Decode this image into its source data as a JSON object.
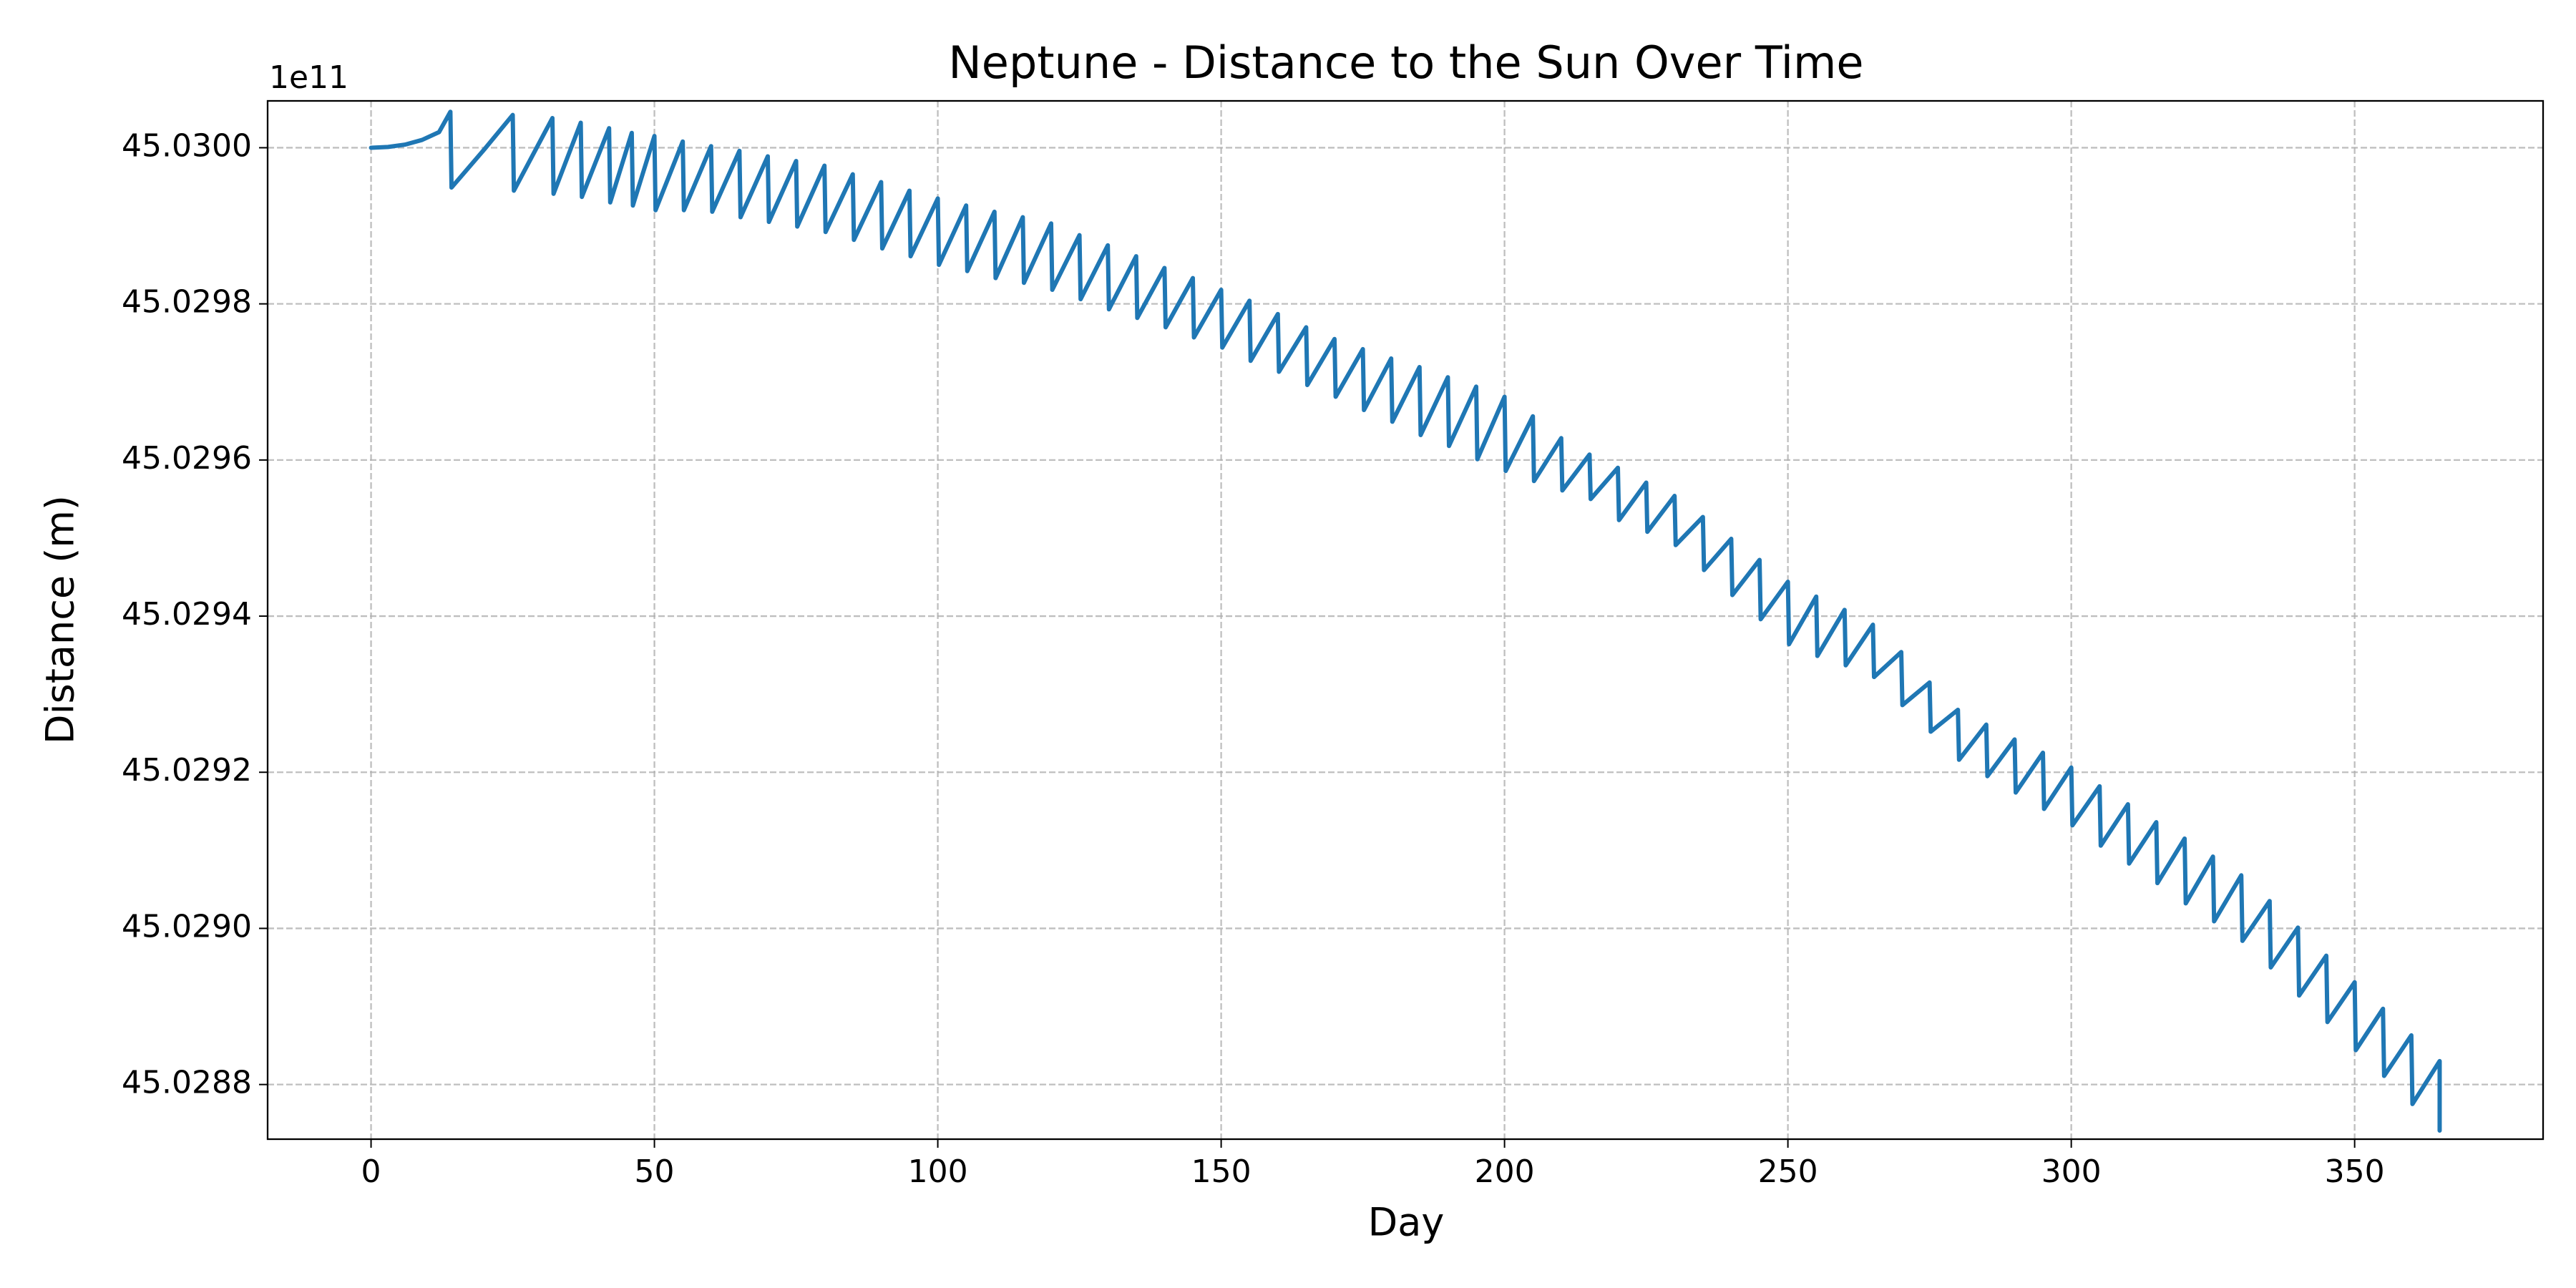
{
  "chart_data": {
    "type": "line",
    "title": "Neptune - Distance to the Sun Over Time",
    "x_label": "Day",
    "y_label": "Distance (m)",
    "offset_label": "1e11",
    "color": "#1f77b4",
    "grid": true,
    "xlim": [
      -18.25,
      383.25
    ],
    "ylim": [
      45.02873,
      45.03006
    ],
    "xticks": [
      0,
      50,
      100,
      150,
      200,
      250,
      300,
      350
    ],
    "yticks": [
      {
        "value": 45.0288,
        "label": "45.0288"
      },
      {
        "value": 45.029,
        "label": "45.0290"
      },
      {
        "value": 45.0292,
        "label": "45.0292"
      },
      {
        "value": 45.0294,
        "label": "45.0294"
      },
      {
        "value": 45.0296,
        "label": "45.0296"
      },
      {
        "value": 45.0298,
        "label": "45.0298"
      },
      {
        "value": 45.03,
        "label": "45.0300"
      }
    ],
    "x": [
      0,
      3,
      6,
      9,
      12,
      14,
      14.2,
      20,
      25,
      25.2,
      32,
      32.2,
      37,
      37.2,
      42,
      42.2,
      46,
      46.2,
      50,
      50.2,
      55,
      55.2,
      60,
      60.2,
      65,
      65.2,
      70,
      70.2,
      75,
      75.2,
      80,
      80.2,
      85,
      85.2,
      90,
      90.2,
      95,
      95.2,
      100,
      100.2,
      105,
      105.2,
      110,
      110.2,
      115,
      115.2,
      120,
      120.2,
      125,
      125.2,
      130,
      130.2,
      135,
      135.2,
      140,
      140.2,
      145,
      145.2,
      150,
      150.2,
      155,
      155.2,
      160,
      160.2,
      165,
      165.2,
      170,
      170.2,
      175,
      175.2,
      180,
      180.2,
      185,
      185.2,
      190,
      190.2,
      195,
      195.2,
      200,
      200.2,
      205,
      205.2,
      210,
      210.2,
      215,
      215.2,
      220,
      220.2,
      225,
      225.2,
      230,
      230.2,
      235,
      235.2,
      240,
      240.2,
      245,
      245.2,
      250,
      250.2,
      255,
      255.2,
      260,
      260.2,
      265,
      265.2,
      270,
      270.2,
      275,
      275.2,
      280,
      280.2,
      285,
      285.2,
      290,
      290.2,
      295,
      295.2,
      300,
      300.2,
      305,
      305.2,
      310,
      310.2,
      315,
      315.2,
      320,
      320.2,
      325,
      325.2,
      330,
      330.2,
      335,
      335.2,
      340,
      340.2,
      345,
      345.2,
      350,
      350.2,
      355,
      355.2,
      360,
      360.2,
      365,
      365
    ],
    "values": [
      45.03,
      45.030001,
      45.030004,
      45.03001,
      45.03002,
      45.030046,
      45.029949,
      45.029998,
      45.030042,
      45.029945,
      45.030038,
      45.029941,
      45.030032,
      45.029937,
      45.030025,
      45.02993,
      45.030019,
      45.029926,
      45.030015,
      45.02992,
      45.030008,
      45.02992,
      45.030002,
      45.029918,
      45.029996,
      45.029911,
      45.029989,
      45.029905,
      45.029983,
      45.029899,
      45.029977,
      45.029892,
      45.029966,
      45.029882,
      45.029956,
      45.029871,
      45.029945,
      45.029861,
      45.029935,
      45.02985,
      45.029926,
      45.029842,
      45.029918,
      45.029833,
      45.029911,
      45.029827,
      45.029903,
      45.029818,
      45.029888,
      45.029806,
      45.029875,
      45.029793,
      45.029861,
      45.029782,
      45.029846,
      45.02977,
      45.029833,
      45.029757,
      45.029818,
      45.029744,
      45.029804,
      45.029727,
      45.029787,
      45.029713,
      45.02977,
      45.029696,
      45.029755,
      45.029681,
      45.029742,
      45.029664,
      45.02973,
      45.029649,
      45.029719,
      45.029632,
      45.029706,
      45.029618,
      45.029694,
      45.029601,
      45.029681,
      45.029586,
      45.029656,
      45.029573,
      45.029628,
      45.029561,
      45.029607,
      45.02955,
      45.02959,
      45.029523,
      45.029571,
      45.029508,
      45.029554,
      45.029491,
      45.029527,
      45.029459,
      45.029499,
      45.029427,
      45.029472,
      45.029396,
      45.029444,
      45.029364,
      45.029425,
      45.029349,
      45.029408,
      45.029337,
      45.029389,
      45.029322,
      45.029354,
      45.029286,
      45.029315,
      45.029252,
      45.02928,
      45.029216,
      45.029261,
      45.029195,
      45.029242,
      45.029174,
      45.029225,
      45.029153,
      45.029206,
      45.029132,
      45.029182,
      45.029106,
      45.029159,
      45.029083,
      45.029136,
      45.029058,
      45.029115,
      45.029032,
      45.029092,
      45.029009,
      45.029068,
      45.028984,
      45.029035,
      45.02895,
      45.029001,
      45.028914,
      45.028965,
      45.02888,
      45.028931,
      45.028844,
      45.028897,
      45.028811,
      45.028863,
      45.028775,
      45.02883,
      45.028741
    ]
  }
}
